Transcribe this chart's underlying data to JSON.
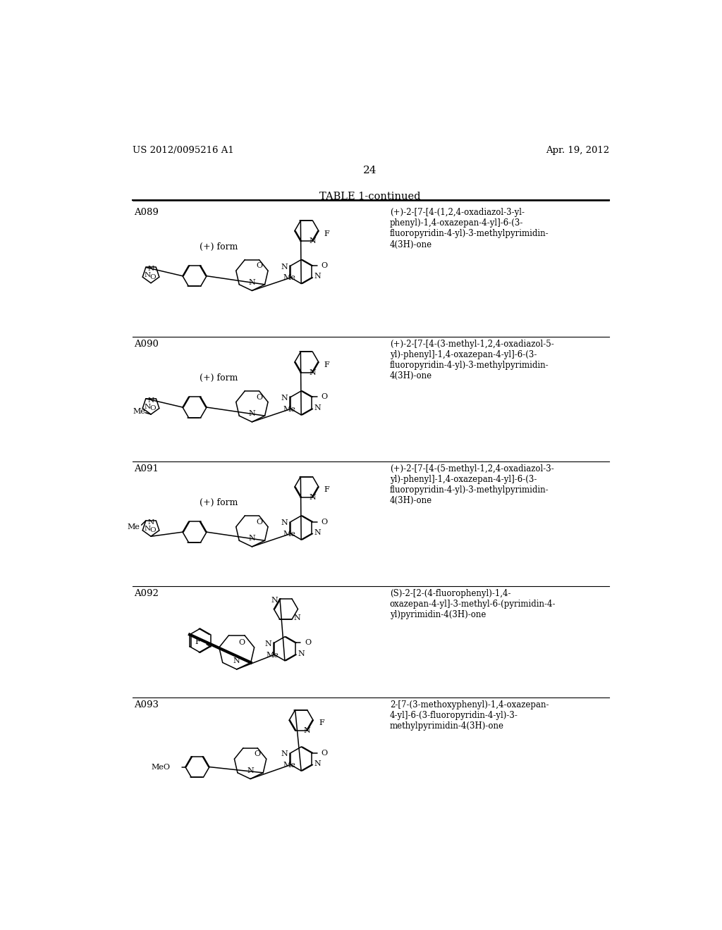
{
  "page_header_left": "US 2012/0095216 A1",
  "page_header_right": "Apr. 19, 2012",
  "page_number": "24",
  "table_title": "TABLE 1-continued",
  "background_color": "#ffffff",
  "text_color": "#000000",
  "entries": [
    {
      "id": "A089",
      "stereo": "(+) form",
      "name": "(+)-2-[7-[4-(1,2,4-oxadiazol-3-yl-\nphenyl)-1,4-oxazepan-4-yl]-6-(3-\nfluoropyridin-4-yl)-3-methylpyrimidin-\n4(3H)-one"
    },
    {
      "id": "A090",
      "stereo": "(+) form",
      "name": "(+)-2-[7-[4-(3-methyl-1,2,4-oxadiazol-5-\nyl)-phenyl]-1,4-oxazepan-4-yl]-6-(3-\nfluoropyridin-4-yl)-3-methylpyrimidin-\n4(3H)-one"
    },
    {
      "id": "A091",
      "stereo": "(+) form",
      "name": "(+)-2-[7-[4-(5-methyl-1,2,4-oxadiazol-3-\nyl)-phenyl]-1,4-oxazepan-4-yl]-6-(3-\nfluoropyridin-4-yl)-3-methylpyrimidin-\n4(3H)-one"
    },
    {
      "id": "A092",
      "stereo": "",
      "name": "(S)-2-[2-(4-fluorophenyl)-1,4-\noxazepan-4-yl]-3-methyl-6-(pyrimidin-4-\nyl)pyrimidin-4(3H)-one"
    },
    {
      "id": "A093",
      "stereo": "",
      "name": "2-[7-(3-methoxyphenyl)-1,4-oxazepan-\n4-yl]-6-(3-fluoropyridin-4-yl)-3-\nmethylpyrimidin-4(3H)-one"
    }
  ],
  "row_tops": [
    173,
    415,
    645,
    875,
    1080
  ],
  "row_bottoms": [
    415,
    645,
    875,
    1080,
    1320
  ]
}
